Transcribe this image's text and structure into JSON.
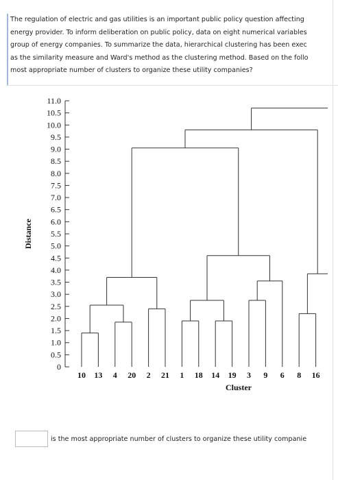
{
  "question": {
    "lines": [
      "The regulation of electric and gas utilities is an important public policy question affecting",
      "energy provider. To inform deliberation on public policy, data on eight numerical variables",
      "group of energy companies. To summarize the data, hierarchical clustering has been exec",
      "as the similarity measure and Ward's method as the clustering method. Based on the follo",
      "most appropriate number of clusters to organize these utility companies?"
    ]
  },
  "dendrogram": {
    "type": "dendrogram",
    "ylabel": "Distance",
    "xlabel": "Cluster",
    "ylim": [
      0,
      11
    ],
    "yticks": [
      0,
      0.5,
      {
        "value": 1,
        "label": "1.0"
      },
      1.5,
      {
        "value": 2,
        "label": "2.0"
      },
      2.5,
      {
        "value": 3,
        "label": "3.0"
      },
      3.5,
      {
        "value": 4,
        "label": "4.0"
      },
      4.5,
      {
        "value": 5,
        "label": "5.0"
      },
      5.5,
      {
        "value": 6,
        "label": "6.0"
      },
      6.5,
      {
        "value": 7,
        "label": "7.0"
      },
      7.5,
      {
        "value": 8,
        "label": "8.0"
      },
      8.5,
      {
        "value": 9,
        "label": "9.0"
      },
      9.5,
      {
        "value": 10,
        "label": "10.0"
      },
      10.5,
      {
        "value": 11,
        "label": "11.0"
      }
    ],
    "leaves": [
      "10",
      "13",
      "4",
      "20",
      "2",
      "21",
      "1",
      "18",
      "14",
      "19",
      "3",
      "9",
      "6",
      "8",
      "16"
    ],
    "merges": [
      {
        "children": [
          0,
          1
        ],
        "height": 1.4
      },
      {
        "children": [
          2,
          3
        ],
        "height": 1.85
      },
      {
        "children": [
          15,
          16
        ],
        "height": 2.55
      },
      {
        "children": [
          4,
          5
        ],
        "height": 2.4
      },
      {
        "children": [
          17,
          18
        ],
        "height": 3.7
      },
      {
        "children": [
          6,
          7
        ],
        "height": 1.9
      },
      {
        "children": [
          8,
          9
        ],
        "height": 1.9
      },
      {
        "children": [
          20,
          21
        ],
        "height": 2.75
      },
      {
        "children": [
          10,
          11
        ],
        "height": 2.75
      },
      {
        "children": [
          23,
          12
        ],
        "height": 3.55
      },
      {
        "children": [
          22,
          24
        ],
        "height": 4.6
      },
      {
        "children": [
          19,
          25
        ],
        "height": 9.05
      },
      {
        "children": [
          13,
          14
        ],
        "height": 2.2
      },
      {
        "children": [
          27,
          null
        ],
        "height": 3.85
      },
      {
        "children": [
          26,
          28
        ],
        "height": 9.8
      },
      {
        "children": [
          29,
          null
        ],
        "height": 10.7
      }
    ]
  },
  "answer": {
    "text": "is the most appropriate number of clusters to organize these utility companie"
  }
}
